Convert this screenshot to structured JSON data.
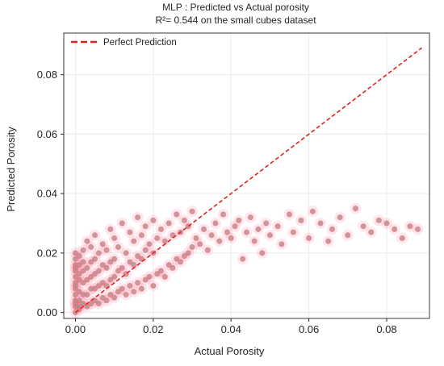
{
  "chart_data": {
    "type": "scatter",
    "title": "MLP : Predicted vs Actual porosity",
    "subtitle": "R²= 0.544 on the small cubes dataset",
    "xlabel": "Actual Porosity",
    "ylabel": "Predicted Porosity",
    "xlim": [
      -0.003,
      0.091
    ],
    "ylim": [
      -0.002,
      0.094
    ],
    "x_ticks": [
      "0.00",
      "0.02",
      "0.04",
      "0.06",
      "0.08"
    ],
    "y_ticks": [
      "0.00",
      "0.02",
      "0.04",
      "0.06",
      "0.08"
    ],
    "grid": true,
    "legend": {
      "position": "top-left",
      "entries": [
        "Perfect Prediction"
      ]
    },
    "reference_line": {
      "name": "Perfect Prediction",
      "x": [
        0.0,
        0.089
      ],
      "y": [
        0.0,
        0.089
      ],
      "color": "#e3211c",
      "style": "dashed"
    },
    "point_color": "#b98a86",
    "highlight_color": "#ff5e82",
    "x_values": [
      0.0,
      0.0,
      0.0,
      0.0,
      0.0,
      0.0,
      0.0,
      0.0,
      0.0,
      0.0,
      0.0,
      0.0,
      0.0,
      0.0,
      0.001,
      0.001,
      0.001,
      0.001,
      0.001,
      0.001,
      0.001,
      0.001,
      0.002,
      0.002,
      0.002,
      0.002,
      0.002,
      0.002,
      0.003,
      0.003,
      0.003,
      0.003,
      0.003,
      0.004,
      0.004,
      0.004,
      0.004,
      0.004,
      0.005,
      0.005,
      0.005,
      0.005,
      0.005,
      0.006,
      0.006,
      0.006,
      0.006,
      0.007,
      0.007,
      0.007,
      0.007,
      0.008,
      0.008,
      0.008,
      0.008,
      0.009,
      0.009,
      0.009,
      0.009,
      0.01,
      0.01,
      0.01,
      0.01,
      0.011,
      0.011,
      0.011,
      0.012,
      0.012,
      0.012,
      0.013,
      0.013,
      0.013,
      0.014,
      0.014,
      0.014,
      0.015,
      0.015,
      0.015,
      0.016,
      0.016,
      0.016,
      0.017,
      0.017,
      0.017,
      0.018,
      0.018,
      0.018,
      0.019,
      0.019,
      0.02,
      0.02,
      0.02,
      0.021,
      0.021,
      0.022,
      0.022,
      0.023,
      0.023,
      0.024,
      0.024,
      0.025,
      0.025,
      0.026,
      0.026,
      0.027,
      0.027,
      0.028,
      0.028,
      0.029,
      0.029,
      0.03,
      0.03,
      0.031,
      0.032,
      0.033,
      0.034,
      0.035,
      0.036,
      0.037,
      0.038,
      0.039,
      0.04,
      0.041,
      0.042,
      0.043,
      0.044,
      0.045,
      0.046,
      0.047,
      0.048,
      0.049,
      0.05,
      0.052,
      0.053,
      0.055,
      0.056,
      0.058,
      0.06,
      0.061,
      0.063,
      0.065,
      0.066,
      0.068,
      0.07,
      0.072,
      0.074,
      0.076,
      0.078,
      0.08,
      0.082,
      0.084,
      0.086,
      0.088
    ],
    "y_values": [
      0.0,
      0.002,
      0.004,
      0.006,
      0.008,
      0.01,
      0.012,
      0.014,
      0.016,
      0.018,
      0.02,
      0.003,
      0.009,
      0.015,
      0.001,
      0.004,
      0.007,
      0.011,
      0.016,
      0.019,
      0.002,
      0.013,
      0.003,
      0.006,
      0.01,
      0.014,
      0.017,
      0.021,
      0.002,
      0.006,
      0.011,
      0.015,
      0.024,
      0.003,
      0.008,
      0.012,
      0.017,
      0.022,
      0.004,
      0.008,
      0.013,
      0.018,
      0.026,
      0.003,
      0.009,
      0.014,
      0.02,
      0.005,
      0.01,
      0.016,
      0.023,
      0.004,
      0.009,
      0.015,
      0.021,
      0.006,
      0.011,
      0.017,
      0.028,
      0.005,
      0.012,
      0.018,
      0.025,
      0.007,
      0.014,
      0.022,
      0.008,
      0.015,
      0.03,
      0.006,
      0.013,
      0.02,
      0.009,
      0.017,
      0.027,
      0.007,
      0.016,
      0.024,
      0.01,
      0.019,
      0.032,
      0.008,
      0.018,
      0.026,
      0.011,
      0.021,
      0.029,
      0.012,
      0.023,
      0.009,
      0.02,
      0.031,
      0.013,
      0.025,
      0.014,
      0.028,
      0.012,
      0.024,
      0.016,
      0.03,
      0.015,
      0.026,
      0.018,
      0.033,
      0.017,
      0.027,
      0.019,
      0.031,
      0.02,
      0.029,
      0.022,
      0.034,
      0.025,
      0.023,
      0.028,
      0.021,
      0.026,
      0.03,
      0.024,
      0.033,
      0.027,
      0.025,
      0.029,
      0.031,
      0.018,
      0.027,
      0.032,
      0.024,
      0.028,
      0.02,
      0.03,
      0.026,
      0.029,
      0.023,
      0.033,
      0.027,
      0.031,
      0.025,
      0.034,
      0.03,
      0.024,
      0.028,
      0.032,
      0.026,
      0.035,
      0.029,
      0.027,
      0.031,
      0.03,
      0.028,
      0.025,
      0.029,
      0.028
    ]
  }
}
